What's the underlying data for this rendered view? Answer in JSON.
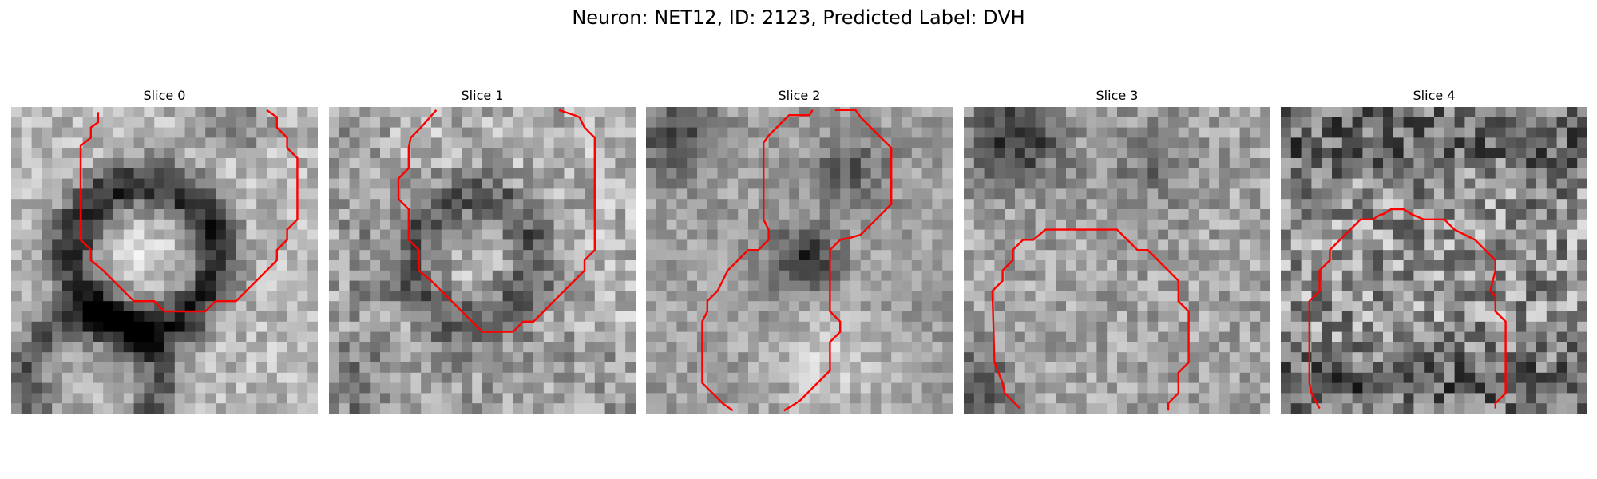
{
  "figure": {
    "title": "Neuron: NET12, ID: 2123, Predicted Label: DVH"
  },
  "panels": [
    {
      "title": "Slice 0"
    },
    {
      "title": "Slice 1"
    },
    {
      "title": "Slice 2"
    },
    {
      "title": "Slice 3"
    },
    {
      "title": "Slice 4"
    }
  ],
  "colors": {
    "contour": "#ff0000",
    "background": "#ffffff",
    "colormap": "gray"
  }
}
